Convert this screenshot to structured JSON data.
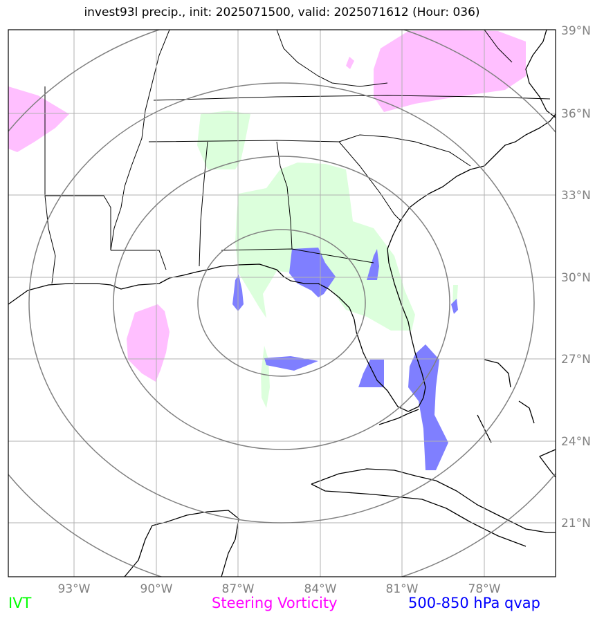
{
  "title": "invest93l precip., init: 2025071500, valid: 2025071612 (Hour: 036)",
  "lon_ticks": [
    "93°W",
    "90°W",
    "87°W",
    "84°W",
    "81°W",
    "78°W"
  ],
  "lat_ticks": [
    "39°N",
    "36°N",
    "33°N",
    "30°N",
    "27°N",
    "24°N",
    "21°N"
  ],
  "legend": {
    "ivt": {
      "label": "IVT",
      "color": "#00ff00"
    },
    "vorticity": {
      "label": "Steering Vorticity",
      "color": "#ff00ff"
    },
    "qvap": {
      "label": "500-850 hPa qvap",
      "color": "#0000ff"
    }
  },
  "map": {
    "extent": {
      "lon_min": -95.4,
      "lon_max": -75.4,
      "lat_min": 18.1,
      "lat_max": 38.1
    },
    "center": {
      "lon": -84.0,
      "lat": 28.0
    },
    "ring_radii_deg": [
      3,
      6,
      9,
      12
    ],
    "fill_colors": {
      "ivt": "#dcffdc",
      "vorticity": "#ffbfff",
      "qvap": "#7f7fff"
    },
    "grid_color": "#b0b0b0",
    "ring_color": "#808080"
  }
}
